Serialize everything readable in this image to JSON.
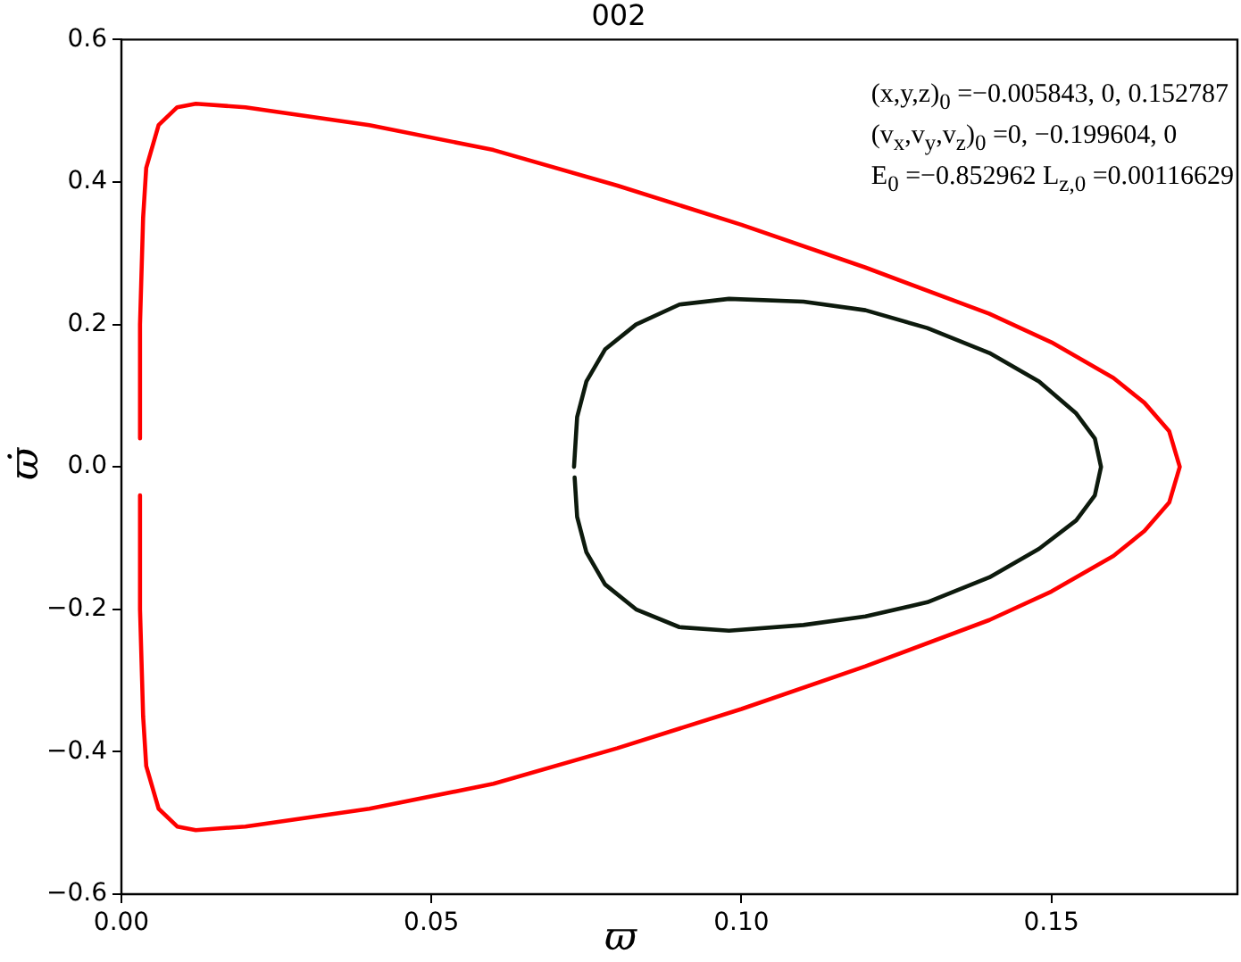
{
  "chart_data": {
    "type": "line",
    "title": "002",
    "xlabel": "ϖ",
    "ylabel": "ϖ̇",
    "annotations": [
      "(x,y,z)$_{0}$ =−0.005843, 0, 0.152787",
      "(v$_{x}$,v$_{y}$,v$_{z}$)$_{0}$ =0, −0.199604, 0",
      "E$_{0}$ =−0.852962  L$_{z,0}$ =0.00116629"
    ],
    "xlim": [
      0,
      0.18
    ],
    "xticks": [
      {
        "value": 0,
        "label": "0.00"
      },
      {
        "value": 0.05,
        "label": "0.05"
      },
      {
        "value": 0.1,
        "label": "0.10"
      },
      {
        "value": 0.15,
        "label": "0.15"
      }
    ],
    "ylim": [
      -0.6,
      0.6
    ],
    "yticks": [
      {
        "value": -0.6,
        "label": "−0.6"
      },
      {
        "value": -0.4,
        "label": "−0.4"
      },
      {
        "value": -0.2,
        "label": "−0.2"
      },
      {
        "value": 0,
        "label": "0.0"
      },
      {
        "value": 0.2,
        "label": "0.2"
      },
      {
        "value": 0.4,
        "label": "0.4"
      },
      {
        "value": 0.6,
        "label": "0.6"
      }
    ],
    "grid": false,
    "legend": false,
    "marker": "none",
    "line_style": "solid",
    "series": [
      {
        "color": "#ff0000",
        "x": [
          0.003,
          0.003,
          0.0035,
          0.004,
          0.006,
          0.009,
          0.012,
          0.02,
          0.04,
          0.06,
          0.08,
          0.1,
          0.12,
          0.14,
          0.15,
          0.16,
          0.165,
          0.169,
          0.1707,
          0.169,
          0.165,
          0.16,
          0.15,
          0.14,
          0.12,
          0.1,
          0.08,
          0.06,
          0.04,
          0.02,
          0.012,
          0.009,
          0.006,
          0.004,
          0.0035,
          0.003,
          0.003
        ],
        "values": [
          0.04,
          0.2,
          0.35,
          0.42,
          0.48,
          0.505,
          0.51,
          0.505,
          0.48,
          0.445,
          0.395,
          0.34,
          0.28,
          0.215,
          0.175,
          0.125,
          0.09,
          0.05,
          0,
          -0.05,
          -0.09,
          -0.125,
          -0.175,
          -0.215,
          -0.28,
          -0.34,
          -0.395,
          -0.445,
          -0.48,
          -0.505,
          -0.51,
          -0.505,
          -0.48,
          -0.42,
          -0.35,
          -0.2,
          -0.04
        ]
      },
      {
        "color": "#0d1a0d",
        "x": [
          0.073,
          0.0735,
          0.075,
          0.078,
          0.083,
          0.09,
          0.098,
          0.11,
          0.12,
          0.13,
          0.14,
          0.148,
          0.154,
          0.157,
          0.158,
          0.157,
          0.154,
          0.148,
          0.14,
          0.13,
          0.12,
          0.11,
          0.098,
          0.09,
          0.083,
          0.078,
          0.075,
          0.0735,
          0.0731
        ],
        "values": [
          0,
          0.07,
          0.12,
          0.165,
          0.2,
          0.228,
          0.236,
          0.232,
          0.22,
          0.195,
          0.16,
          0.12,
          0.075,
          0.04,
          0,
          -0.04,
          -0.075,
          -0.115,
          -0.155,
          -0.19,
          -0.21,
          -0.222,
          -0.23,
          -0.225,
          -0.2,
          -0.165,
          -0.12,
          -0.07,
          -0.015
        ]
      }
    ]
  }
}
